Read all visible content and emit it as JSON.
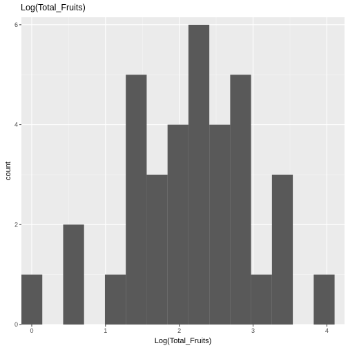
{
  "chart_data": {
    "type": "bar",
    "title": "Log(Total_Fruits)",
    "xlabel": "Log(Total_Fruits)",
    "ylabel": "count",
    "xlim": [
      -0.14,
      4.24
    ],
    "ylim": [
      0,
      6.15
    ],
    "x_ticks": [
      0,
      1,
      2,
      3,
      4
    ],
    "y_ticks": [
      0,
      2,
      4,
      6
    ],
    "bin_width": 0.283,
    "bins": [
      {
        "x_start": -0.14,
        "x_end": 0.143,
        "count": 1
      },
      {
        "x_start": 0.143,
        "x_end": 0.426,
        "count": 0
      },
      {
        "x_start": 0.426,
        "x_end": 0.709,
        "count": 2
      },
      {
        "x_start": 0.709,
        "x_end": 0.992,
        "count": 0
      },
      {
        "x_start": 0.992,
        "x_end": 1.275,
        "count": 1
      },
      {
        "x_start": 1.275,
        "x_end": 1.558,
        "count": 5
      },
      {
        "x_start": 1.558,
        "x_end": 1.841,
        "count": 3
      },
      {
        "x_start": 1.841,
        "x_end": 2.124,
        "count": 4
      },
      {
        "x_start": 2.124,
        "x_end": 2.407,
        "count": 6
      },
      {
        "x_start": 2.407,
        "x_end": 2.69,
        "count": 4
      },
      {
        "x_start": 2.69,
        "x_end": 2.973,
        "count": 5
      },
      {
        "x_start": 2.973,
        "x_end": 3.256,
        "count": 1
      },
      {
        "x_start": 3.256,
        "x_end": 3.539,
        "count": 3
      },
      {
        "x_start": 3.539,
        "x_end": 3.822,
        "count": 0
      },
      {
        "x_start": 3.822,
        "x_end": 4.105,
        "count": 1
      }
    ],
    "grid": true,
    "colors": {
      "bar": "#595959",
      "panel": "#ebebeb",
      "grid_major": "#ffffff",
      "grid_minor": "#f5f5f5",
      "tick_label": "#4d4d4d"
    }
  }
}
